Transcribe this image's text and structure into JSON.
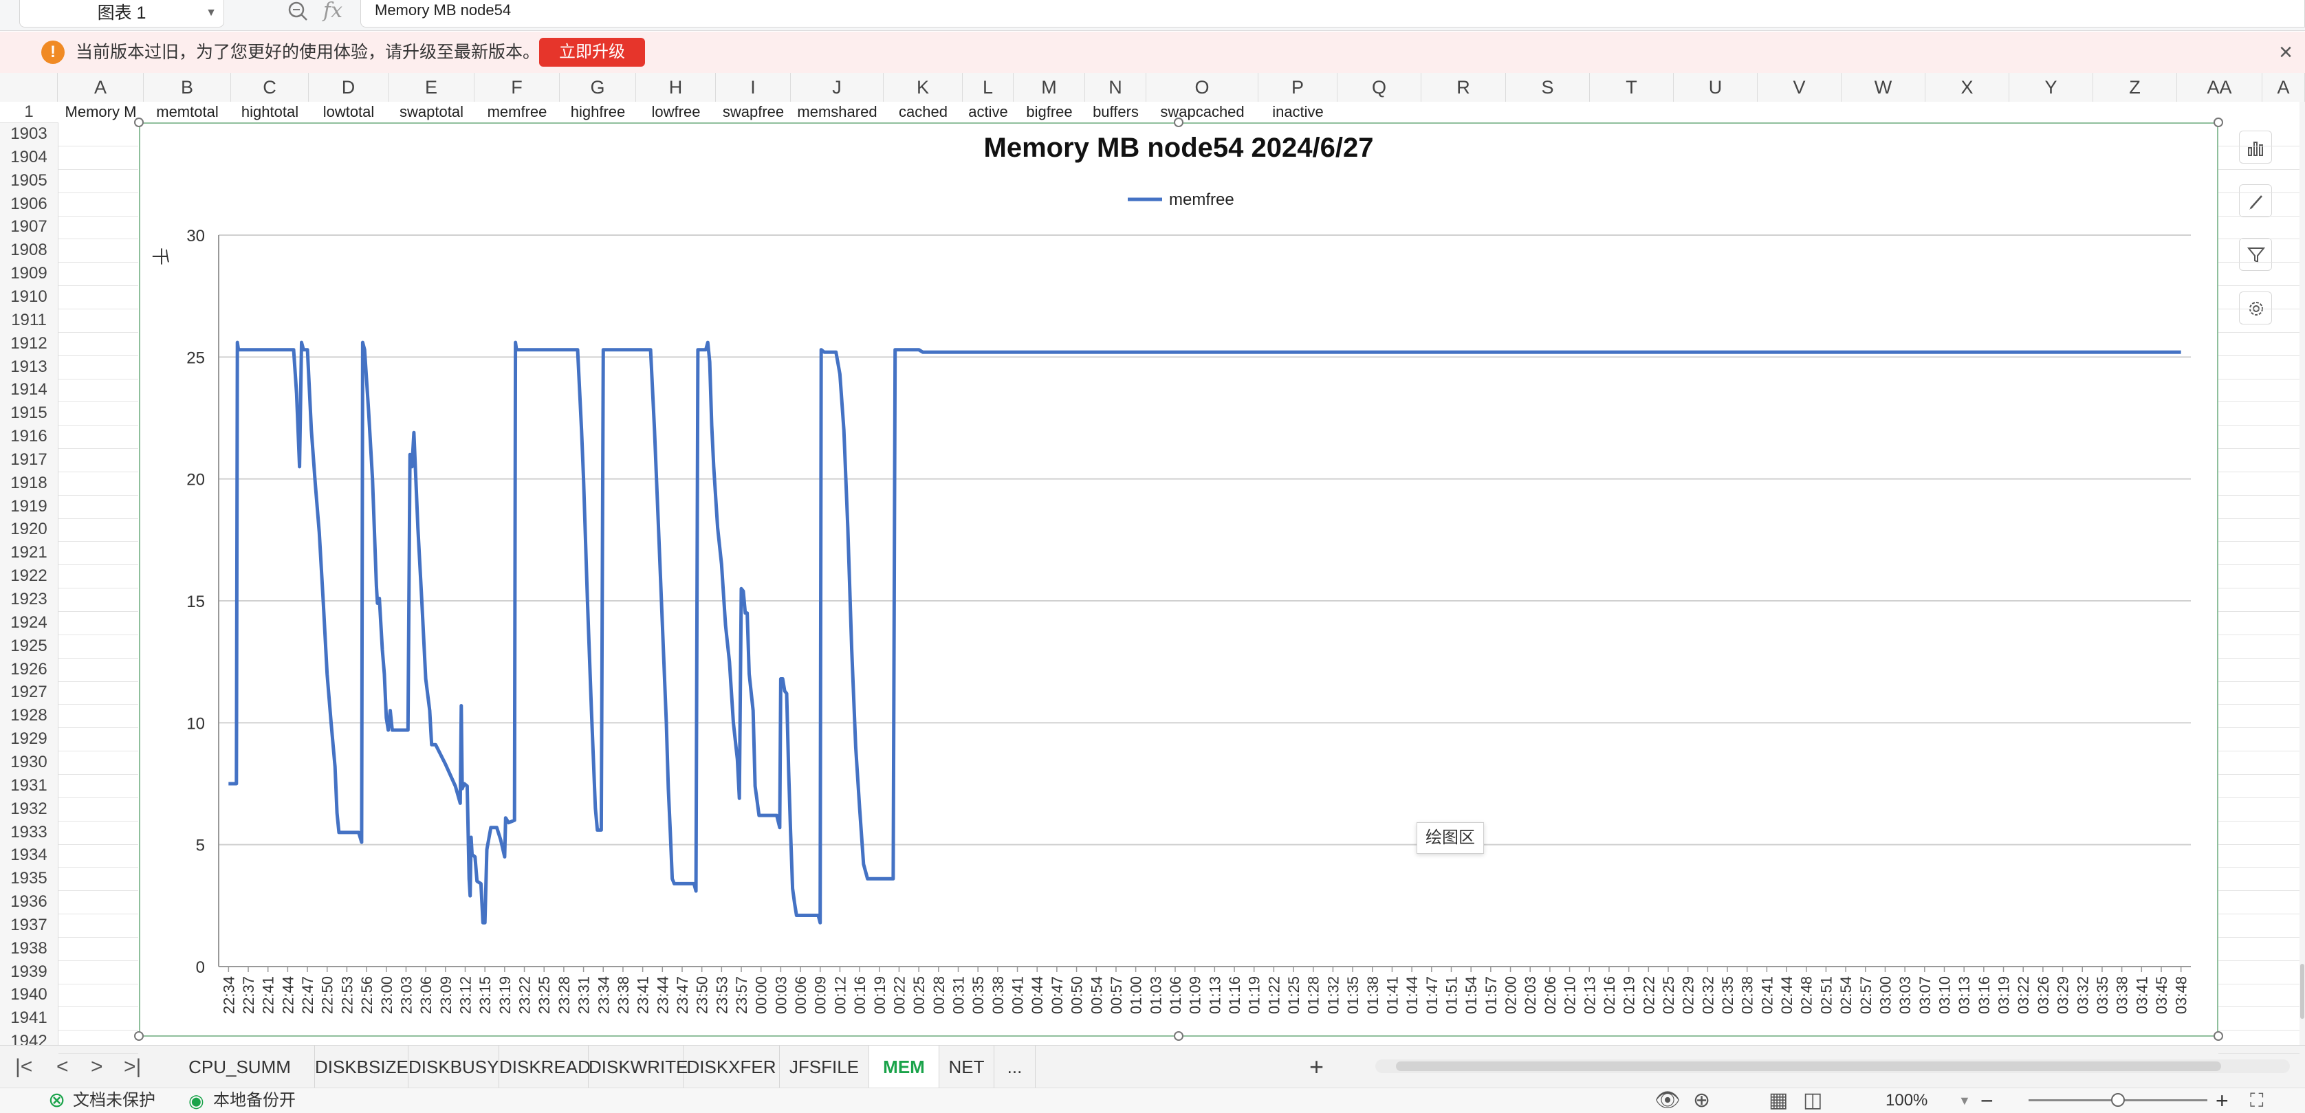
{
  "formula_bar": {
    "name_box": "图表 1",
    "fx_label": "fx",
    "formula_value": "Memory MB node54"
  },
  "notice": {
    "icon_label": "!",
    "message": "当前版本过旧，为了您更好的使用体验，请升级至最新版本。",
    "upgrade_label": "立即升级",
    "close_label": "×"
  },
  "columns": [
    "A",
    "B",
    "C",
    "D",
    "E",
    "F",
    "G",
    "H",
    "I",
    "J",
    "K",
    "L",
    "M",
    "N",
    "O",
    "P",
    "Q",
    "R",
    "S",
    "T",
    "U",
    "V",
    "W",
    "X",
    "Y",
    "Z",
    "AA",
    "A"
  ],
  "row1": {
    "row_number": "1",
    "cells": [
      "Memory M",
      "memtotal",
      "hightotal",
      "lowtotal",
      "swaptotal",
      "memfree",
      "highfree",
      "lowfree",
      "swapfree",
      "memshared",
      "cached",
      "active",
      "bigfree",
      "buffers",
      "swapcached",
      "inactive"
    ]
  },
  "row_numbers": [
    "1903",
    "1904",
    "1905",
    "1906",
    "1907",
    "1908",
    "1909",
    "1910",
    "1911",
    "1912",
    "1913",
    "1914",
    "1915",
    "1916",
    "1917",
    "1918",
    "1919",
    "1920",
    "1921",
    "1922",
    "1923",
    "1924",
    "1925",
    "1926",
    "1927",
    "1928",
    "1929",
    "1930",
    "1931",
    "1932",
    "1933",
    "1934",
    "1935",
    "1936",
    "1937",
    "1938",
    "1939",
    "1940",
    "1941",
    "1942"
  ],
  "chart_data": {
    "type": "line",
    "title": "Memory MB node54  2024/6/27",
    "ylabel": "千",
    "xlabel": "",
    "ylim": [
      0,
      30
    ],
    "yticks": [
      0,
      5,
      10,
      15,
      20,
      25,
      30
    ],
    "grid": true,
    "legend": "top-center",
    "line_color": "#4472c4",
    "x_labels": [
      "22:34",
      "22:37",
      "22:41",
      "22:44",
      "22:47",
      "22:50",
      "22:53",
      "22:56",
      "23:00",
      "23:03",
      "23:06",
      "23:09",
      "23:12",
      "23:15",
      "23:19",
      "23:22",
      "23:25",
      "23:28",
      "23:31",
      "23:34",
      "23:38",
      "23:41",
      "23:44",
      "23:47",
      "23:50",
      "23:53",
      "23:57",
      "00:00",
      "00:03",
      "00:06",
      "00:09",
      "00:12",
      "00:16",
      "00:19",
      "00:22",
      "00:25",
      "00:28",
      "00:31",
      "00:35",
      "00:38",
      "00:41",
      "00:44",
      "00:47",
      "00:50",
      "00:54",
      "00:57",
      "01:00",
      "01:03",
      "01:06",
      "01:09",
      "01:13",
      "01:16",
      "01:19",
      "01:22",
      "01:25",
      "01:28",
      "01:32",
      "01:35",
      "01:38",
      "01:41",
      "01:44",
      "01:47",
      "01:51",
      "01:54",
      "01:57",
      "02:00",
      "02:03",
      "02:06",
      "02:10",
      "02:13",
      "02:16",
      "02:19",
      "02:22",
      "02:25",
      "02:29",
      "02:32",
      "02:35",
      "02:38",
      "02:41",
      "02:44",
      "02:48",
      "02:51",
      "02:54",
      "02:57",
      "03:00",
      "03:03",
      "03:07",
      "03:10",
      "03:13",
      "03:16",
      "03:19",
      "03:22",
      "03:26",
      "03:29",
      "03:32",
      "03:35",
      "03:38",
      "03:41",
      "03:45",
      "03:48"
    ],
    "series": [
      {
        "name": "memfree",
        "points": [
          [
            0,
            7.5
          ],
          [
            0.4,
            7.5
          ],
          [
            0.45,
            25.6
          ],
          [
            0.5,
            25.3
          ],
          [
            3.3,
            25.3
          ],
          [
            3.45,
            23.5
          ],
          [
            3.6,
            20.5
          ],
          [
            3.7,
            25.6
          ],
          [
            3.8,
            25.3
          ],
          [
            4.0,
            25.3
          ],
          [
            4.2,
            22
          ],
          [
            4.4,
            19.8
          ],
          [
            4.6,
            17.8
          ],
          [
            4.8,
            15
          ],
          [
            5.0,
            12
          ],
          [
            5.2,
            10
          ],
          [
            5.4,
            8.2
          ],
          [
            5.5,
            6.3
          ],
          [
            5.6,
            5.5
          ],
          [
            6.6,
            5.5
          ],
          [
            6.75,
            5.1
          ],
          [
            6.8,
            25.6
          ],
          [
            6.9,
            25.3
          ],
          [
            7.1,
            22.8
          ],
          [
            7.3,
            20
          ],
          [
            7.5,
            15.6
          ],
          [
            7.55,
            14.9
          ],
          [
            7.65,
            15.1
          ],
          [
            7.8,
            13
          ],
          [
            7.9,
            12
          ],
          [
            8.0,
            10.2
          ],
          [
            8.1,
            9.7
          ],
          [
            8.2,
            10.5
          ],
          [
            8.3,
            9.7
          ],
          [
            9.1,
            9.7
          ],
          [
            9.2,
            21
          ],
          [
            9.3,
            20.5
          ],
          [
            9.4,
            21.9
          ],
          [
            9.6,
            18
          ],
          [
            9.8,
            15
          ],
          [
            10.0,
            11.8
          ],
          [
            10.2,
            10.5
          ],
          [
            10.3,
            9.1
          ],
          [
            10.5,
            9.1
          ],
          [
            11.0,
            8.3
          ],
          [
            11.5,
            7.4
          ],
          [
            11.75,
            6.7
          ],
          [
            11.8,
            10.7
          ],
          [
            11.85,
            7.3
          ],
          [
            11.95,
            7.5
          ],
          [
            12.1,
            7.4
          ],
          [
            12.2,
            3.6
          ],
          [
            12.25,
            2.9
          ],
          [
            12.3,
            5.3
          ],
          [
            12.35,
            4.6
          ],
          [
            12.5,
            4.5
          ],
          [
            12.6,
            3.5
          ],
          [
            12.8,
            3.4
          ],
          [
            12.9,
            1.8
          ],
          [
            13.0,
            1.8
          ],
          [
            13.1,
            4.8
          ],
          [
            13.3,
            5.7
          ],
          [
            13.6,
            5.7
          ],
          [
            13.8,
            5.2
          ],
          [
            14.0,
            4.5
          ],
          [
            14.05,
            6.1
          ],
          [
            14.2,
            5.9
          ],
          [
            14.5,
            6.0
          ],
          [
            14.55,
            25.6
          ],
          [
            14.6,
            25.3
          ],
          [
            17.7,
            25.3
          ],
          [
            17.9,
            22
          ],
          [
            18.0,
            20
          ],
          [
            18.2,
            15
          ],
          [
            18.4,
            10.5
          ],
          [
            18.6,
            6.5
          ],
          [
            18.7,
            5.6
          ],
          [
            18.9,
            5.6
          ],
          [
            19.0,
            25.3
          ],
          [
            21.4,
            25.3
          ],
          [
            21.6,
            22
          ],
          [
            21.8,
            18
          ],
          [
            22.0,
            14
          ],
          [
            22.2,
            10
          ],
          [
            22.3,
            7.3
          ],
          [
            22.4,
            5.5
          ],
          [
            22.5,
            3.6
          ],
          [
            22.6,
            3.4
          ],
          [
            23.6,
            3.4
          ],
          [
            23.7,
            3.1
          ],
          [
            23.8,
            25.3
          ],
          [
            24.2,
            25.3
          ],
          [
            24.3,
            25.6
          ],
          [
            24.4,
            24.8
          ],
          [
            24.5,
            22.2
          ],
          [
            24.6,
            20.5
          ],
          [
            24.8,
            18
          ],
          [
            25.0,
            16.5
          ],
          [
            25.2,
            14
          ],
          [
            25.4,
            12.5
          ],
          [
            25.6,
            10
          ],
          [
            25.8,
            8.5
          ],
          [
            25.9,
            6.9
          ],
          [
            26.0,
            15.5
          ],
          [
            26.1,
            15.4
          ],
          [
            26.2,
            14.5
          ],
          [
            26.3,
            14.5
          ],
          [
            26.4,
            12
          ],
          [
            26.6,
            10.5
          ],
          [
            26.7,
            7.4
          ],
          [
            26.8,
            6.8
          ],
          [
            26.9,
            6.2
          ],
          [
            27.8,
            6.2
          ],
          [
            27.95,
            5.7
          ],
          [
            28.0,
            11.8
          ],
          [
            28.1,
            11.8
          ],
          [
            28.2,
            11.3
          ],
          [
            28.3,
            11.2
          ],
          [
            28.4,
            8
          ],
          [
            28.5,
            5.5
          ],
          [
            28.6,
            3.2
          ],
          [
            28.7,
            2.6
          ],
          [
            28.8,
            2.1
          ],
          [
            29.9,
            2.1
          ],
          [
            30.0,
            1.8
          ],
          [
            30.05,
            25.3
          ],
          [
            30.2,
            25.2
          ],
          [
            30.8,
            25.2
          ],
          [
            31.0,
            24.3
          ],
          [
            31.2,
            22
          ],
          [
            31.4,
            18
          ],
          [
            31.6,
            13
          ],
          [
            31.8,
            9
          ],
          [
            32.0,
            6.5
          ],
          [
            32.2,
            4.2
          ],
          [
            32.4,
            3.6
          ],
          [
            33.6,
            3.6
          ],
          [
            33.7,
            3.6
          ],
          [
            33.8,
            25.3
          ],
          [
            35.0,
            25.3
          ],
          [
            35.2,
            25.2
          ],
          [
            99,
            25.2
          ]
        ]
      }
    ]
  },
  "chart_ui": {
    "plot_area_tooltip": "绘图区",
    "tools": [
      "chart-elements-icon",
      "chart-style-icon",
      "chart-filter-icon",
      "chart-settings-icon"
    ]
  },
  "sheet_tabs": {
    "nav": [
      "|<",
      "<",
      ">",
      ">|"
    ],
    "tabs": [
      "CPU_SUMM",
      "DISKBSIZE",
      "DISKBUSY",
      "DISKREAD",
      "DISKWRITE",
      "DISKXFER",
      "JFSFILE",
      "MEM",
      "NET",
      "..."
    ],
    "active": "MEM",
    "add_label": "+"
  },
  "status_bar": {
    "protection": "文档未保护",
    "backup": "本地备份开",
    "zoom": "100%",
    "zoom_level": 0.5,
    "minus": "−",
    "plus": "+"
  }
}
